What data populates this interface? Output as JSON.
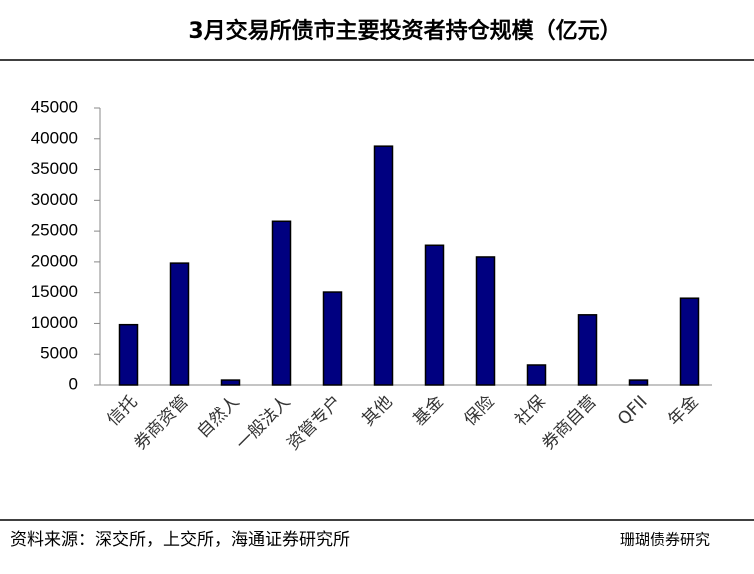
{
  "chart_data": {
    "type": "bar",
    "title": "3月交易所债市主要投资者持仓规模（亿元）",
    "categories": [
      "信托",
      "券商资管",
      "自然人",
      "一般法人",
      "资管专户",
      "其他",
      "基金",
      "保险",
      "社保",
      "券商自营",
      "QFII",
      "年金"
    ],
    "values": [
      9800,
      19800,
      800,
      26600,
      15100,
      38800,
      22700,
      20800,
      3250,
      11400,
      800,
      14100
    ],
    "color": "#000080",
    "ylim": [
      0,
      45000
    ],
    "yticks": [
      0,
      5000,
      10000,
      15000,
      20000,
      25000,
      30000,
      35000,
      40000,
      45000
    ],
    "grid": false,
    "source": "资料来源：深交所，上交所，海通证券研究所",
    "watermark": "珊瑚债券研究"
  }
}
